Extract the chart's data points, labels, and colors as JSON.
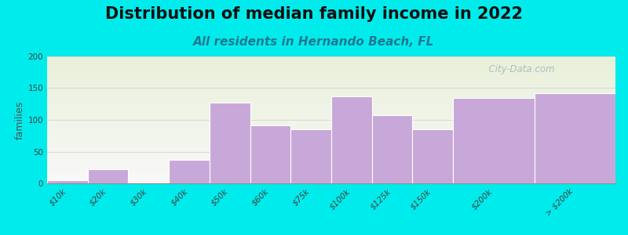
{
  "title": "Distribution of median family income in 2022",
  "subtitle": "All residents in Hernando Beach, FL",
  "ylabel": "families",
  "categories": [
    "$10k",
    "$20k",
    "$30k",
    "$40k",
    "$50k",
    "$60k",
    "$75k",
    "$100k",
    "$125k",
    "$150k",
    "$200k",
    "> $200k"
  ],
  "values": [
    5,
    22,
    0,
    37,
    127,
    91,
    85,
    137,
    108,
    85,
    135,
    142
  ],
  "widths": [
    1,
    1,
    1,
    1,
    1,
    1,
    1,
    1,
    1,
    1,
    2,
    2
  ],
  "bar_color": "#c8a8d8",
  "bar_edge_color": "#ffffff",
  "background_color": "#00ecec",
  "plot_bg_top": "#e8f0d8",
  "plot_bg_bottom": "#f8f8f8",
  "title_fontsize": 15,
  "subtitle_fontsize": 11,
  "ylabel_fontsize": 9,
  "tick_fontsize": 7.5,
  "ylim": [
    0,
    200
  ],
  "yticks": [
    0,
    50,
    100,
    150,
    200
  ],
  "watermark_text": "  City-Data.com",
  "watermark_color": "#a8b4c4",
  "grid_color": "#d8d8d8",
  "subtitle_color": "#207890",
  "title_color": "#101010"
}
